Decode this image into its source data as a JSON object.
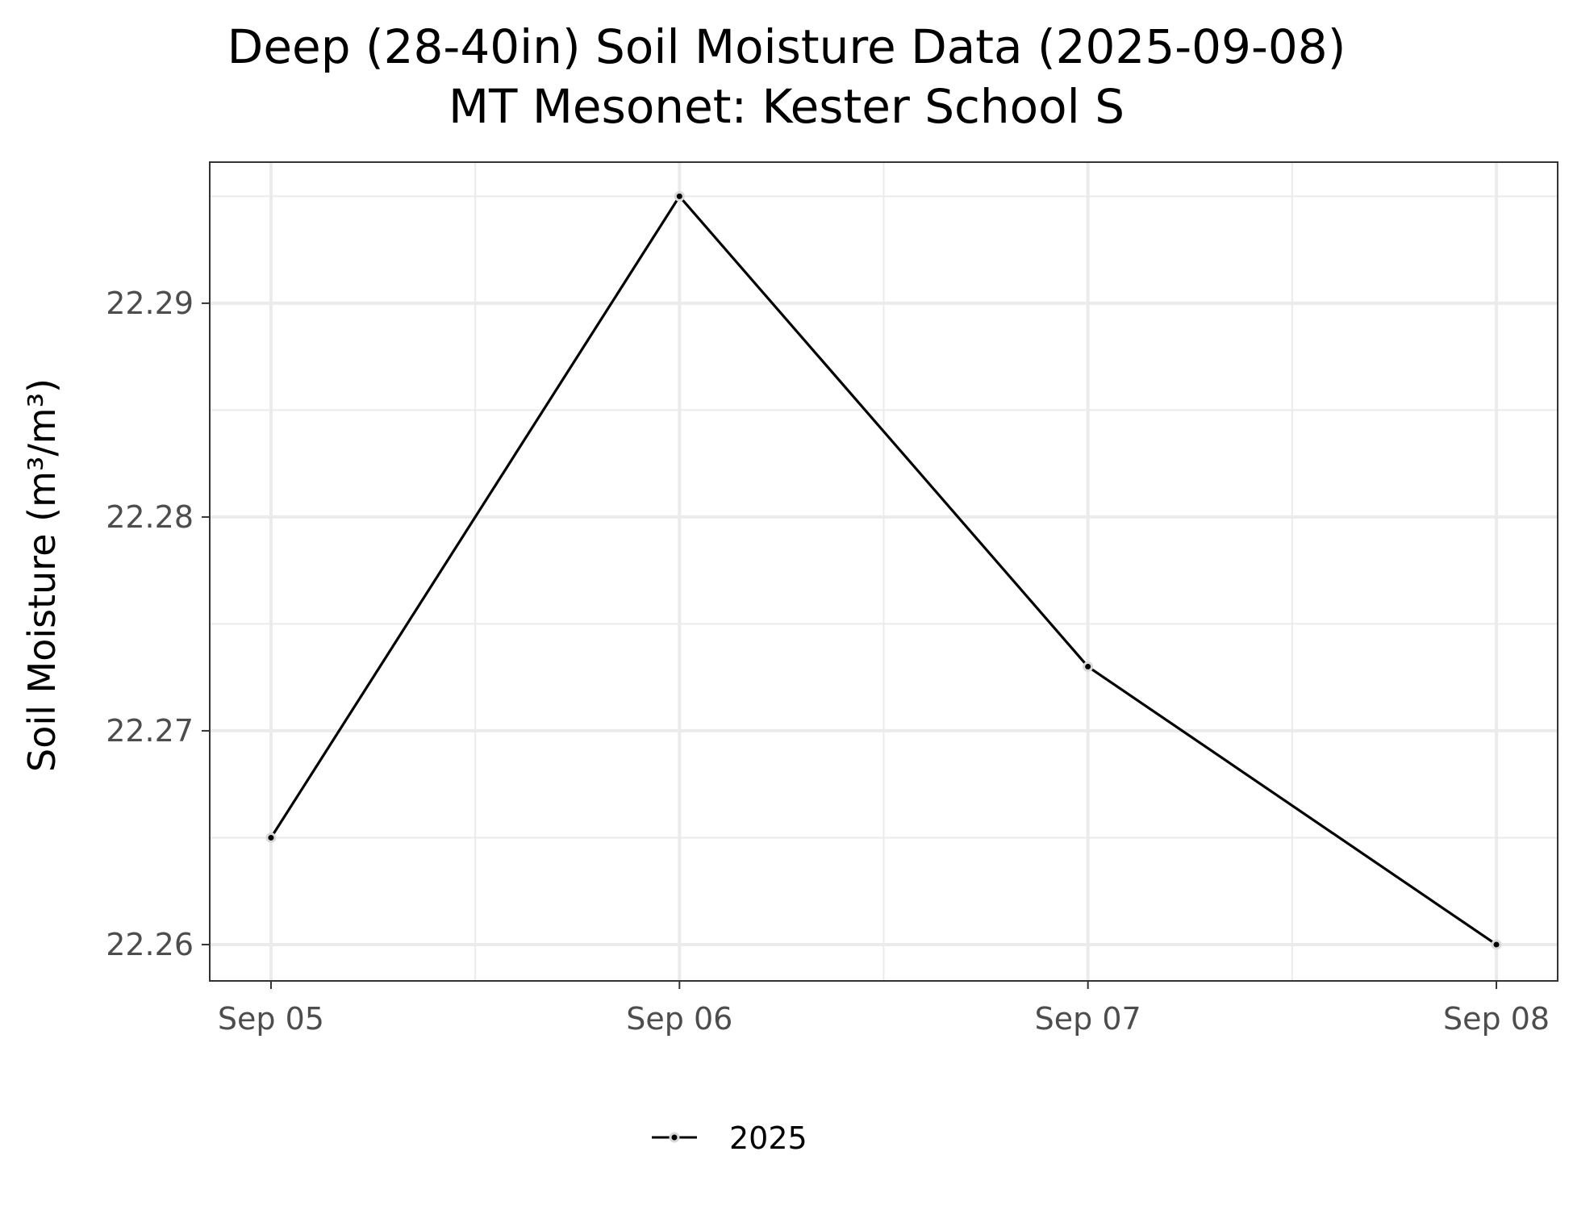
{
  "chart_data": {
    "type": "line",
    "title": [
      "Deep (28-40in) Soil Moisture Data (2025-09-08)",
      "MT Mesonet: Kester School S"
    ],
    "ylabel": "Soil Moisture (m³/m³)",
    "xlabel": "",
    "x": [
      "Sep 05",
      "Sep 06",
      "Sep 07",
      "Sep 08"
    ],
    "xlim": [
      -0.15,
      3.15
    ],
    "ylim": [
      22.2583,
      22.2966
    ],
    "yticks": [
      22.26,
      22.27,
      22.28,
      22.29
    ],
    "ytick_labels": [
      "22.26",
      "22.27",
      "22.28",
      "22.29"
    ],
    "grid": true,
    "legend_position": "bottom",
    "series": [
      {
        "name": "2025",
        "color": "#000000",
        "values": [
          22.265,
          22.295,
          22.273,
          22.26
        ]
      }
    ]
  }
}
